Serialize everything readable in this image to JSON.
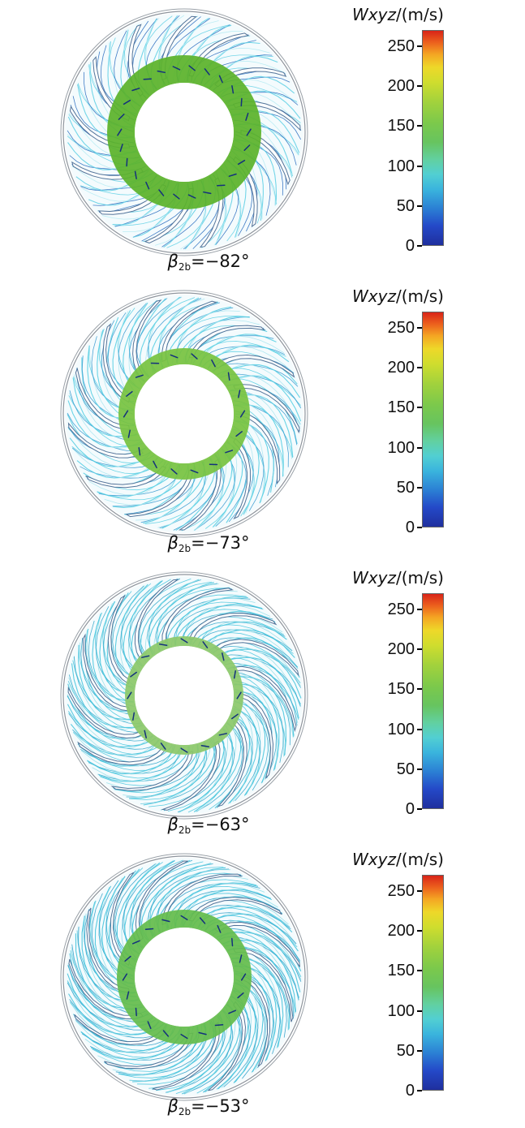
{
  "figure": {
    "colorbar": {
      "title_main": "Wxyz",
      "title_units": "/(m/s)",
      "tick_labels": [
        "250",
        "200",
        "150",
        "100",
        "50",
        "0"
      ],
      "tick_values": [
        250,
        200,
        150,
        100,
        50,
        0
      ],
      "max": 270
    },
    "panels": [
      {
        "caption_symbol": "β",
        "caption_sub": "2b",
        "caption_rest": "=−82°",
        "viz": {
          "blades": 13,
          "lines": 9,
          "sweep_deg": 30,
          "ring_color": "#5bb32b",
          "ring_w": 34,
          "c_main": "#66d2e6",
          "c_light": "#b6ebf3",
          "c_dark": "#2e6fc0",
          "arrows": 26
        }
      },
      {
        "caption_symbol": "β",
        "caption_sub": "2b",
        "caption_rest": "=−73°",
        "viz": {
          "blades": 13,
          "lines": 10,
          "sweep_deg": 42,
          "ring_color": "#77c341",
          "ring_w": 20,
          "c_main": "#5bcfe3",
          "c_light": "#abe6ef",
          "c_dark": "#3b9bd0",
          "arrows": 18
        }
      },
      {
        "caption_symbol": "β",
        "caption_sub": "2b",
        "caption_rest": "=−63°",
        "viz": {
          "blades": 13,
          "lines": 12,
          "sweep_deg": 52,
          "ring_color": "#8cc86a",
          "ring_w": 12,
          "c_main": "#4cc6de",
          "c_light": "#97dfe9",
          "c_dark": "#35a9cc",
          "arrows": 16
        }
      },
      {
        "caption_symbol": "β",
        "caption_sub": "2b",
        "caption_rest": "=−53°",
        "viz": {
          "blades": 13,
          "lines": 12,
          "sweep_deg": 58,
          "ring_color": "#64bc4c",
          "ring_w": 22,
          "c_main": "#47c3dd",
          "c_light": "#8fdde8",
          "c_dark": "#2f9fc9",
          "arrows": 20
        }
      }
    ]
  },
  "chart_data": {
    "type": "heatmap",
    "variant": "CFD streamline / relative-velocity contour plots of a radial impeller cross-section, 4 panels for different blade outlet angles",
    "panels": [
      {
        "caption": "β2b=−82°",
        "beta_2b_deg": -82,
        "blade_count": 13
      },
      {
        "caption": "β2b=−73°",
        "beta_2b_deg": -73,
        "blade_count": 13
      },
      {
        "caption": "β2b=−63°",
        "beta_2b_deg": -63,
        "blade_count": 13
      },
      {
        "caption": "β2b=−53°",
        "beta_2b_deg": -53,
        "blade_count": 13
      }
    ],
    "colorbar": {
      "label": "Wxyz/(m/s)",
      "units": "m/s",
      "tick_values": [
        0,
        50,
        100,
        150,
        200,
        250
      ],
      "range": [
        0,
        270
      ],
      "colormap": "rainbow (blue→cyan→green→yellow→orange→red)",
      "colormap_stops": [
        [
          "#1f2f9e",
          0
        ],
        [
          "#2449c8",
          0.09
        ],
        [
          "#2b7fd4",
          0.17
        ],
        [
          "#3ab4dd",
          0.26
        ],
        [
          "#52cfd2",
          0.33
        ],
        [
          "#62d0a0",
          0.4
        ],
        [
          "#67c45f",
          0.48
        ],
        [
          "#7cc94b",
          0.57
        ],
        [
          "#a3d23c",
          0.67
        ],
        [
          "#cfdd2e",
          0.76
        ],
        [
          "#eed829",
          0.83
        ],
        [
          "#f4a623",
          0.89
        ],
        [
          "#ec611d",
          0.945
        ],
        [
          "#d92418",
          1
        ]
      ]
    }
  }
}
